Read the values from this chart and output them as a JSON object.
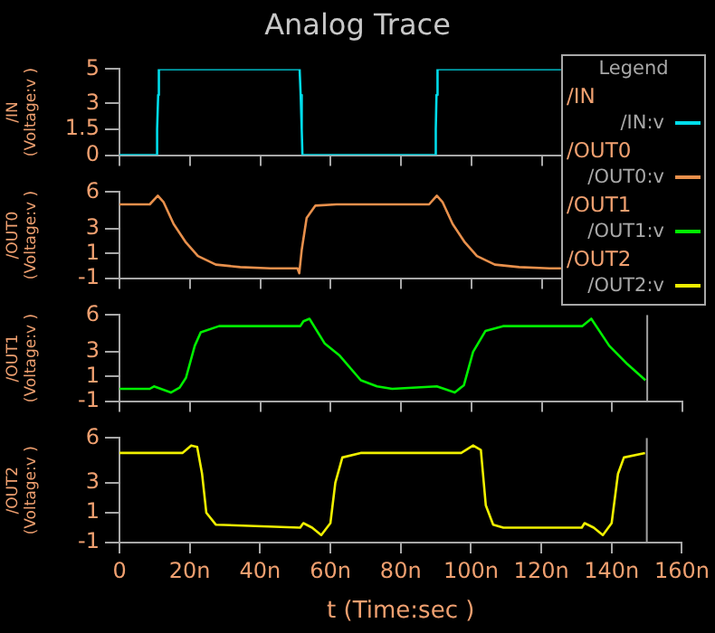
{
  "chart_data": [
    {
      "type": "line",
      "title": "Analog Trace",
      "legend_title": "Legend",
      "legend": "right",
      "tick_labels": "y",
      "ylabel": "/IN (Voltage:v )",
      "annotations": [
        "/IN"
      ],
      "series": [
        {
          "name": "/IN:v",
          "color": "#00dcea",
          "x": [
            0,
            10.4,
            10.7,
            11,
            11.2,
            51.2,
            51.5,
            51.8,
            52,
            89.6,
            89.9,
            90.1,
            90.4,
            125.5
          ],
          "values": [
            0,
            0,
            1.5,
            3.5,
            5,
            5,
            3.5,
            1.5,
            0,
            0,
            1.5,
            3.5,
            5,
            5
          ]
        }
      ],
      "xlim": [
        0,
        160
      ],
      "xticks": [
        {
          "value": 0,
          "label": null
        },
        {
          "value": 20,
          "label": null
        },
        {
          "value": 40,
          "label": null
        },
        {
          "value": 60,
          "label": null
        },
        {
          "value": 80,
          "label": null
        },
        {
          "value": 100,
          "label": null
        },
        {
          "value": 120,
          "label": null
        },
        {
          "value": 140,
          "label": null
        },
        {
          "value": 160,
          "label": null
        }
      ],
      "ylim": [
        0,
        5
      ],
      "yticks": [
        0,
        1.5,
        3,
        5
      ]
    },
    {
      "type": "line",
      "legend": "right",
      "tick_labels": "y",
      "ylabel": "/OUT0 (Voltage:v )",
      "annotations": [
        "/OUT0"
      ],
      "series": [
        {
          "name": "/OUT0:v",
          "color": "#e8904c",
          "x": [
            0,
            8.6,
            10.9,
            12.5,
            15.4,
            18.9,
            22.3,
            27.4,
            34.3,
            42.9,
            50.6,
            51.1,
            51.8,
            53.2,
            55.7,
            61.7,
            88,
            90.2,
            91.8,
            94.7,
            98.2,
            101.6,
            106.7,
            113.6,
            122.2,
            125.5
          ],
          "values": [
            5,
            5,
            5.7,
            5.2,
            3.4,
            1.9,
            0.8,
            0.1,
            -0.1,
            -0.2,
            -0.2,
            -0.6,
            1.3,
            3.9,
            4.9,
            5,
            5,
            5.7,
            5.2,
            3.4,
            1.9,
            0.8,
            0.1,
            -0.1,
            -0.2,
            -0.2
          ]
        }
      ],
      "xlim": [
        0,
        160
      ],
      "xticks": [
        {
          "value": 0,
          "label": null
        },
        {
          "value": 20,
          "label": null
        },
        {
          "value": 40,
          "label": null
        },
        {
          "value": 60,
          "label": null
        },
        {
          "value": 80,
          "label": null
        },
        {
          "value": 100,
          "label": null
        },
        {
          "value": 120,
          "label": null
        },
        {
          "value": 140,
          "label": null
        },
        {
          "value": 160,
          "label": null
        }
      ],
      "ylim": [
        -1,
        6
      ],
      "yticks": [
        -1,
        1,
        3,
        6
      ]
    },
    {
      "type": "line",
      "legend": "right",
      "tick_labels": "y",
      "ylabel": "/OUT1 (Voltage:v )",
      "annotations": [
        "/OUT1"
      ],
      "series": [
        {
          "name": "/OUT1:v",
          "color": "#00f000",
          "x": [
            0,
            8.6,
            9.8,
            14.6,
            17.1,
            18.9,
            21.4,
            23.1,
            28.3,
            51.4,
            52.3,
            54,
            58.3,
            62.6,
            68.6,
            73.2,
            77.5,
            90.2,
            95.3,
            97.9,
            100.5,
            104,
            109,
            131.5,
            134.1,
            139.2,
            144.4,
            149.5
          ],
          "values": [
            0,
            0,
            0.2,
            -0.3,
            0.1,
            0.9,
            3.5,
            4.6,
            5.1,
            5.1,
            5.5,
            5.7,
            3.7,
            2.7,
            0.7,
            0.2,
            0,
            0.2,
            -0.3,
            0.3,
            3,
            4.7,
            5.1,
            5.1,
            5.7,
            3.5,
            2,
            0.7
          ]
        }
      ],
      "xlim": [
        0,
        160
      ],
      "xticks": [
        {
          "value": 0,
          "label": null
        },
        {
          "value": 20,
          "label": null
        },
        {
          "value": 40,
          "label": null
        },
        {
          "value": 60,
          "label": null
        },
        {
          "value": 80,
          "label": null
        },
        {
          "value": 100,
          "label": null
        },
        {
          "value": 120,
          "label": null
        },
        {
          "value": 140,
          "label": null
        },
        {
          "value": 160,
          "label": null
        }
      ],
      "ylim": [
        -1,
        6
      ],
      "yticks": [
        -1,
        1,
        3,
        6
      ],
      "ref_lines": [
        {
          "axis": "x",
          "value": 150,
          "color": "#a0a0a0"
        }
      ]
    },
    {
      "type": "line",
      "legend": "right",
      "ylabel": "/OUT2 (Voltage:v )",
      "xlabel": "t (Time:sec )",
      "annotations": [
        "/OUT2"
      ],
      "series": [
        {
          "name": "/OUT2:v",
          "color": "#f0f000",
          "x": [
            0,
            17.9,
            20.4,
            22.1,
            23.5,
            24.7,
            27.4,
            51.4,
            52.3,
            54.8,
            57.4,
            60,
            61.4,
            63.4,
            68.6,
            97.2,
            100.6,
            102.8,
            104.2,
            106.3,
            109.2,
            131.5,
            132.3,
            134.9,
            137.5,
            140,
            141.8,
            143.5,
            149.5
          ],
          "values": [
            5,
            5,
            5.5,
            5.4,
            3.6,
            1,
            0.2,
            0,
            0.3,
            0,
            -0.5,
            0.3,
            3,
            4.7,
            5,
            5,
            5.5,
            5.2,
            1.5,
            0.2,
            0,
            0,
            0.3,
            0,
            -0.5,
            0.3,
            3.6,
            4.7,
            5
          ]
        }
      ],
      "xlim": [
        0,
        160
      ],
      "xticks": [
        0,
        {
          "value": 20,
          "label": "20n"
        },
        {
          "value": 40,
          "label": "40n"
        },
        {
          "value": 60,
          "label": "60n"
        },
        {
          "value": 80,
          "label": "80n"
        },
        {
          "value": 100,
          "label": "100n"
        },
        {
          "value": 120,
          "label": "120n"
        },
        {
          "value": 140,
          "label": "140n"
        },
        {
          "value": 160,
          "label": "160n"
        }
      ],
      "ylim": [
        -1,
        6
      ],
      "yticks": [
        -1,
        1,
        3,
        6
      ],
      "ref_lines": [
        {
          "axis": "x",
          "value": 150,
          "color": "#a0a0a0"
        }
      ]
    }
  ]
}
